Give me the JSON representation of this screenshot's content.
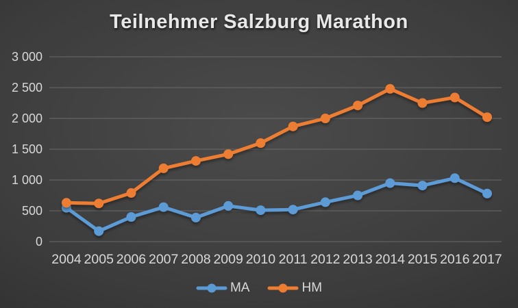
{
  "title": "Teilnehmer Salzburg Marathon",
  "colors": {
    "ma": "#5B9BD5",
    "hm": "#ED7D31",
    "grid": "#6a6a6a",
    "axis_text": "#d9d9d9",
    "title_text": "#e8e8e8"
  },
  "chart_data": {
    "type": "line",
    "title": "Teilnehmer Salzburg Marathon",
    "categories": [
      "2004",
      "2005",
      "2006",
      "2007",
      "2008",
      "2009",
      "2010",
      "2011",
      "2012",
      "2013",
      "2014",
      "2015",
      "2016",
      "2017"
    ],
    "series": [
      {
        "name": "MA",
        "color_key": "ma",
        "values": [
          550,
          170,
          400,
          560,
          390,
          580,
          510,
          520,
          640,
          750,
          950,
          910,
          1030,
          780
        ]
      },
      {
        "name": "HM",
        "color_key": "hm",
        "values": [
          630,
          620,
          790,
          1190,
          1310,
          1420,
          1600,
          1870,
          2000,
          2210,
          2480,
          2250,
          2340,
          2020
        ]
      }
    ],
    "xlabel": "",
    "ylabel": "",
    "ylim": [
      0,
      3000
    ],
    "ytick_step": 500,
    "ytick_labels": [
      "0",
      "500",
      "1 000",
      "1 500",
      "2 000",
      "2 500",
      "3 000"
    ],
    "grid": true,
    "legend_position": "bottom",
    "marker": "circle"
  },
  "legend": {
    "items": [
      {
        "label": "MA"
      },
      {
        "label": "HM"
      }
    ]
  }
}
